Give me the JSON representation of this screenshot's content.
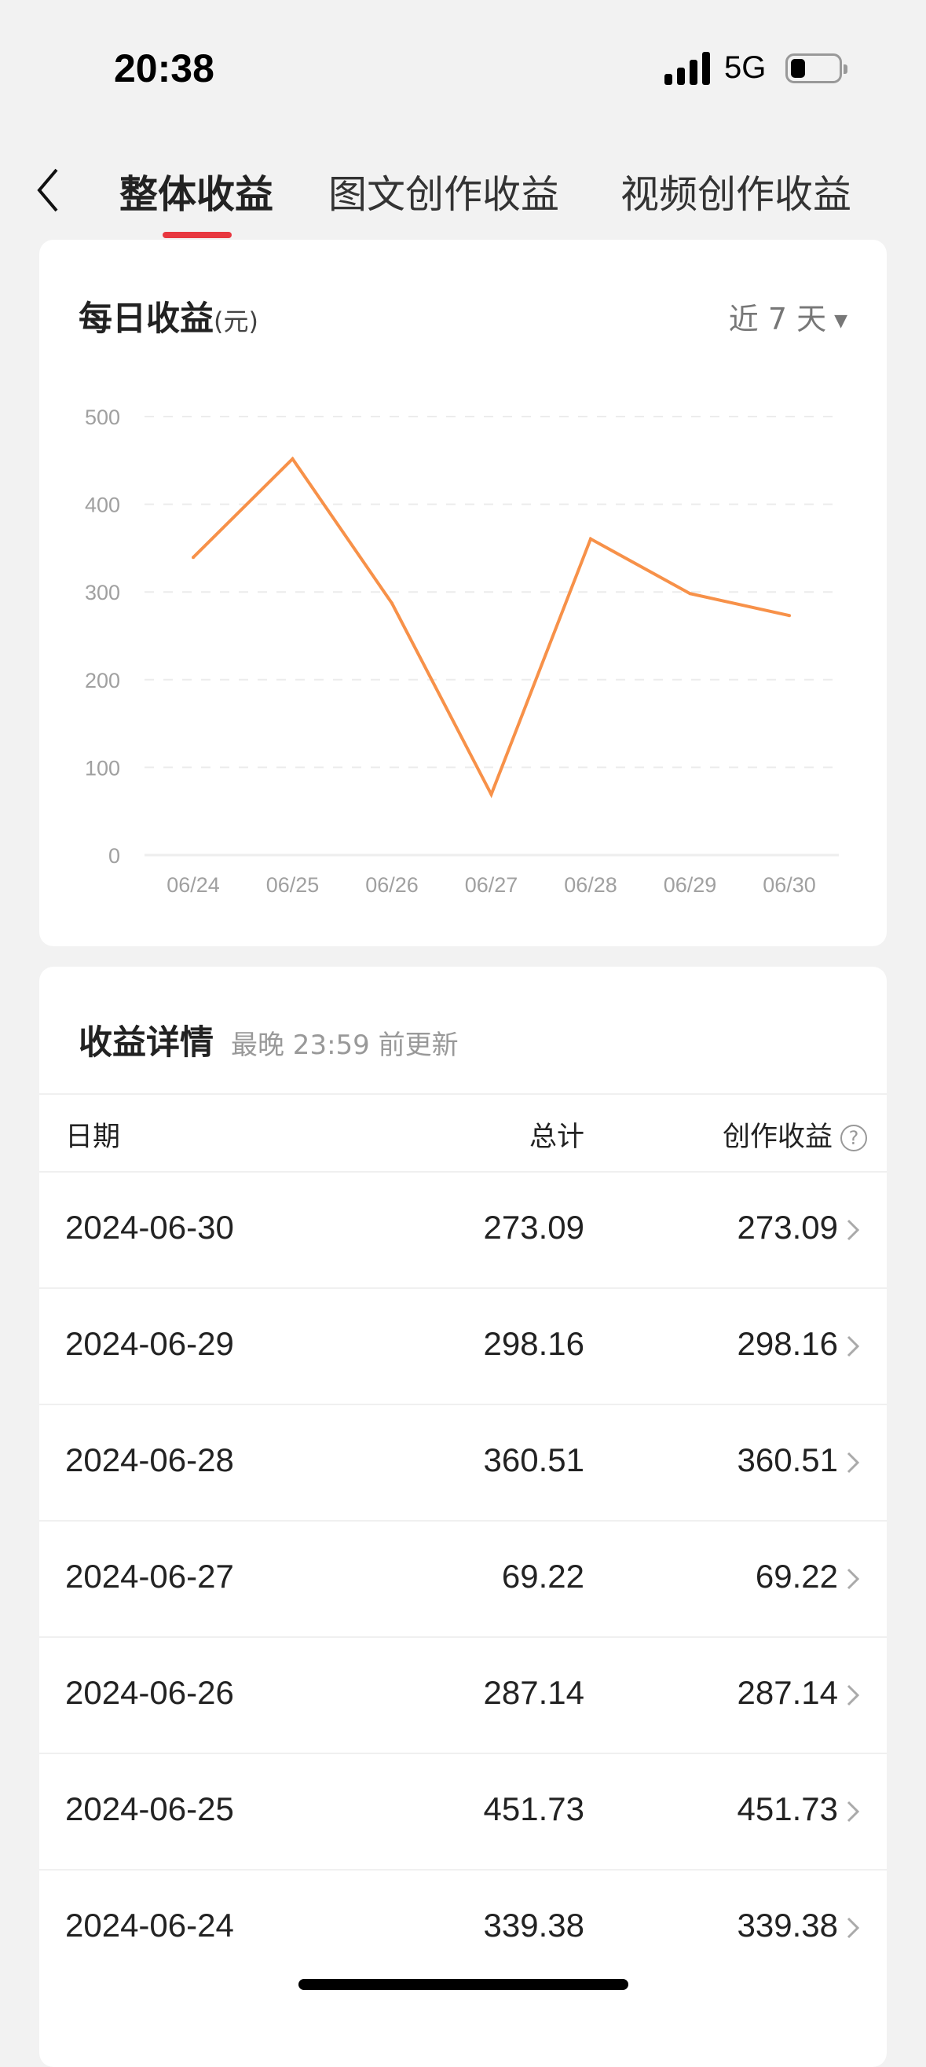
{
  "status_bar": {
    "time": "20:38",
    "network": "5G",
    "battery_icon": "battery-low-icon",
    "signal_icon": "signal-icon"
  },
  "nav": {
    "back_icon": "chevron-left-icon",
    "tabs": [
      {
        "label": "整体收益",
        "active": true
      },
      {
        "label": "图文创作收益",
        "active": false
      },
      {
        "label": "视频创作收益",
        "active": false
      }
    ],
    "accent": "#e8373f"
  },
  "daily": {
    "title": "每日收益",
    "unit": "(元)",
    "range": "近 7 天",
    "range_icon": "triangle-down-icon"
  },
  "chart_data": {
    "type": "line",
    "title": "",
    "xlabel": "",
    "ylabel": "",
    "categories": [
      "06/24",
      "06/25",
      "06/26",
      "06/27",
      "06/28",
      "06/29",
      "06/30"
    ],
    "values": [
      339.38,
      451.73,
      287.14,
      69.22,
      360.51,
      298.16,
      273.09
    ],
    "ylim": [
      0,
      500
    ],
    "yticks": [
      "0",
      "100",
      "200",
      "300",
      "400",
      "500"
    ],
    "grid": "dashed horizontal",
    "line_color": "#f79149",
    "legend": "none"
  },
  "details": {
    "title": "收益详情",
    "subtitle": "最晚 23:59 前更新",
    "headers": {
      "date": "日期",
      "total": "总计",
      "creation": "创作收益"
    },
    "help_icon": "question-circle-icon",
    "rows": [
      {
        "date": "2024-06-30",
        "total": "273.09",
        "creation": "273.09"
      },
      {
        "date": "2024-06-29",
        "total": "298.16",
        "creation": "298.16"
      },
      {
        "date": "2024-06-28",
        "total": "360.51",
        "creation": "360.51"
      },
      {
        "date": "2024-06-27",
        "total": "69.22",
        "creation": "69.22"
      },
      {
        "date": "2024-06-26",
        "total": "287.14",
        "creation": "287.14"
      },
      {
        "date": "2024-06-25",
        "total": "451.73",
        "creation": "451.73"
      },
      {
        "date": "2024-06-24",
        "total": "339.38",
        "creation": "339.38"
      }
    ]
  }
}
